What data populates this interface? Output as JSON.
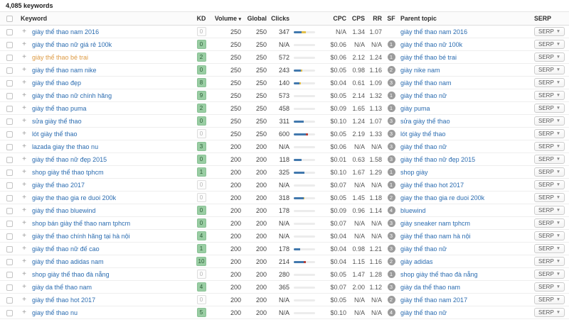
{
  "title": "4,085 keywords",
  "icons": {
    "sort_caret": "▾",
    "serp_caret": "▼",
    "plus": "+"
  },
  "colors": {
    "link_blue": "#2b6cb0",
    "visited_orange": "#dd9a43",
    "kd_green_bg": "#99cda3",
    "bar_blue": "#4178ad",
    "bar_yellow": "#e2bf4a",
    "bar_red": "#b5413b"
  },
  "table": {
    "columns": {
      "keyword": "Keyword",
      "kd": "KD",
      "volume": "Volume",
      "global": "Global",
      "clicks": "Clicks",
      "cpc": "CPC",
      "cps": "CPS",
      "rr": "RR",
      "sf": "SF",
      "parent": "Parent topic",
      "serp": "SERP"
    },
    "serp_button_label": "SERP",
    "rows": [
      {
        "keyword": "giày thể thao nam 2016",
        "visited": false,
        "kd": "0",
        "kd_style": "gray",
        "volume": "250",
        "global": "250",
        "clicks": "347",
        "bar": [
          [
            "blue",
            38
          ],
          [
            "yellow",
            20
          ]
        ],
        "cpc": "N/A",
        "cps": "1.34",
        "rr": "1.07",
        "sf": "",
        "parent": "giày thể thao nam 2016"
      },
      {
        "keyword": "giày thể thao nữ giá rẻ 100k",
        "visited": false,
        "kd": "0",
        "kd_style": "green",
        "volume": "250",
        "global": "250",
        "clicks": "N/A",
        "bar": [],
        "cpc": "$0.06",
        "cps": "N/A",
        "rr": "N/A",
        "sf": "1",
        "parent": "giày thể thao nữ 100k"
      },
      {
        "keyword": "giày thể thao bé trai",
        "visited": true,
        "kd": "2",
        "kd_style": "green",
        "volume": "250",
        "global": "250",
        "clicks": "572",
        "bar": [],
        "cpc": "$0.06",
        "cps": "2.12",
        "rr": "1.24",
        "sf": "1",
        "parent": "giày thể thao bé trai"
      },
      {
        "keyword": "giày thể thao nam nike",
        "visited": false,
        "kd": "0",
        "kd_style": "green",
        "volume": "250",
        "global": "250",
        "clicks": "243",
        "bar": [
          [
            "blue",
            33
          ],
          [
            "yellow",
            8
          ]
        ],
        "cpc": "$0.05",
        "cps": "0.98",
        "rr": "1.16",
        "sf": "2",
        "parent": "giày nike nam"
      },
      {
        "keyword": "giày thể thao đẹp",
        "visited": false,
        "kd": "8",
        "kd_style": "green",
        "volume": "250",
        "global": "250",
        "clicks": "140",
        "bar": [
          [
            "blue",
            26
          ],
          [
            "yellow",
            6
          ]
        ],
        "cpc": "$0.04",
        "cps": "0.61",
        "rr": "1.09",
        "sf": "3",
        "parent": "giày thể thao nam"
      },
      {
        "keyword": "giày thể thao nữ chính hãng",
        "visited": false,
        "kd": "9",
        "kd_style": "green",
        "volume": "250",
        "global": "250",
        "clicks": "573",
        "bar": [],
        "cpc": "$0.05",
        "cps": "2.14",
        "rr": "1.32",
        "sf": "1",
        "parent": "giày thể thao nữ"
      },
      {
        "keyword": "giày thể thao puma",
        "visited": false,
        "kd": "2",
        "kd_style": "green",
        "volume": "250",
        "global": "250",
        "clicks": "458",
        "bar": [],
        "cpc": "$0.09",
        "cps": "1.65",
        "rr": "1.13",
        "sf": "1",
        "parent": "giày puma"
      },
      {
        "keyword": "sửa giày thể thao",
        "visited": false,
        "kd": "0",
        "kd_style": "green",
        "volume": "250",
        "global": "250",
        "clicks": "311",
        "bar": [
          [
            "blue",
            48
          ]
        ],
        "cpc": "$0.10",
        "cps": "1.24",
        "rr": "1.07",
        "sf": "3",
        "parent": "sửa giày thể thao"
      },
      {
        "keyword": "lót giày thể thao",
        "visited": false,
        "kd": "0",
        "kd_style": "gray",
        "volume": "250",
        "global": "250",
        "clicks": "600",
        "bar": [
          [
            "blue",
            55
          ],
          [
            "red",
            10
          ]
        ],
        "cpc": "$0.05",
        "cps": "2.19",
        "rr": "1.33",
        "sf": "3",
        "parent": "lót giày thể thao"
      },
      {
        "keyword": "lazada giay the thao nu",
        "visited": false,
        "kd": "3",
        "kd_style": "green",
        "volume": "200",
        "global": "200",
        "clicks": "N/A",
        "bar": [],
        "cpc": "$0.06",
        "cps": "N/A",
        "rr": "N/A",
        "sf": "3",
        "parent": "giày thể thao nữ"
      },
      {
        "keyword": "giày thể thao nữ đẹp 2015",
        "visited": false,
        "kd": "0",
        "kd_style": "green",
        "volume": "200",
        "global": "200",
        "clicks": "118",
        "bar": [
          [
            "blue",
            35
          ]
        ],
        "cpc": "$0.01",
        "cps": "0.63",
        "rr": "1.58",
        "sf": "3",
        "parent": "giày thể thao nữ đẹp 2015"
      },
      {
        "keyword": "shop giày thể thao tphcm",
        "visited": false,
        "kd": "1",
        "kd_style": "green",
        "volume": "200",
        "global": "200",
        "clicks": "325",
        "bar": [
          [
            "blue",
            50
          ]
        ],
        "cpc": "$0.10",
        "cps": "1.67",
        "rr": "1.29",
        "sf": "1",
        "parent": "shop giày"
      },
      {
        "keyword": "giày thể thao 2017",
        "visited": false,
        "kd": "0",
        "kd_style": "gray",
        "volume": "200",
        "global": "200",
        "clicks": "N/A",
        "bar": [],
        "cpc": "$0.07",
        "cps": "N/A",
        "rr": "N/A",
        "sf": "1",
        "parent": "giày thể thao hot 2017"
      },
      {
        "keyword": "giay the thao gia re duoi 200k",
        "visited": false,
        "kd": "0",
        "kd_style": "gray",
        "volume": "200",
        "global": "200",
        "clicks": "318",
        "bar": [
          [
            "blue",
            45
          ],
          [
            "yellow",
            6
          ]
        ],
        "cpc": "$0.05",
        "cps": "1.45",
        "rr": "1.18",
        "sf": "2",
        "parent": "giay the thao gia re duoi 200k"
      },
      {
        "keyword": "giày thể thao bluewind",
        "visited": false,
        "kd": "0",
        "kd_style": "green",
        "volume": "200",
        "global": "200",
        "clicks": "178",
        "bar": [],
        "cpc": "$0.09",
        "cps": "0.96",
        "rr": "1.14",
        "sf": "4",
        "parent": "bluewind"
      },
      {
        "keyword": "shop bán giày thể thao nam tphcm",
        "visited": false,
        "kd": "0",
        "kd_style": "green",
        "volume": "200",
        "global": "200",
        "clicks": "N/A",
        "bar": [],
        "cpc": "$0.07",
        "cps": "N/A",
        "rr": "N/A",
        "sf": "3",
        "parent": "giày sneaker nam tphcm"
      },
      {
        "keyword": "giày thể thao chính hãng tại hà nội",
        "visited": false,
        "kd": "4",
        "kd_style": "green",
        "volume": "200",
        "global": "200",
        "clicks": "N/A",
        "bar": [],
        "cpc": "$0.04",
        "cps": "N/A",
        "rr": "N/A",
        "sf": "3",
        "parent": "giày thể thao nam hà nội"
      },
      {
        "keyword": "giày thể thao nữ đế cao",
        "visited": false,
        "kd": "1",
        "kd_style": "green",
        "volume": "200",
        "global": "200",
        "clicks": "178",
        "bar": [
          [
            "blue",
            30
          ]
        ],
        "cpc": "$0.04",
        "cps": "0.98",
        "rr": "1.21",
        "sf": "3",
        "parent": "giày thể thao nữ"
      },
      {
        "keyword": "giày thể thao adidas nam",
        "visited": false,
        "kd": "10",
        "kd_style": "green",
        "volume": "200",
        "global": "200",
        "clicks": "214",
        "bar": [
          [
            "blue",
            45
          ],
          [
            "red",
            10
          ]
        ],
        "cpc": "$0.04",
        "cps": "1.15",
        "rr": "1.16",
        "sf": "2",
        "parent": "giày adidas"
      },
      {
        "keyword": "shop giày thể thao đà nẵng",
        "visited": false,
        "kd": "0",
        "kd_style": "gray",
        "volume": "200",
        "global": "200",
        "clicks": "280",
        "bar": [],
        "cpc": "$0.05",
        "cps": "1.47",
        "rr": "1.28",
        "sf": "1",
        "parent": "shop giày thể thao đà nẵng"
      },
      {
        "keyword": "giày da thể thao nam",
        "visited": false,
        "kd": "4",
        "kd_style": "green",
        "volume": "200",
        "global": "200",
        "clicks": "365",
        "bar": [],
        "cpc": "$0.07",
        "cps": "2.00",
        "rr": "1.12",
        "sf": "3",
        "parent": "giày da thể thao nam"
      },
      {
        "keyword": "giày thể thao hot 2017",
        "visited": false,
        "kd": "0",
        "kd_style": "gray",
        "volume": "200",
        "global": "200",
        "clicks": "N/A",
        "bar": [],
        "cpc": "$0.05",
        "cps": "N/A",
        "rr": "N/A",
        "sf": "2",
        "parent": "giày thể thao nam 2017"
      },
      {
        "keyword": "giay thể thao nu",
        "visited": false,
        "kd": "5",
        "kd_style": "green",
        "volume": "200",
        "global": "200",
        "clicks": "N/A",
        "bar": [],
        "cpc": "$0.10",
        "cps": "N/A",
        "rr": "N/A",
        "sf": "4",
        "parent": "giày thể thao nữ"
      }
    ]
  }
}
